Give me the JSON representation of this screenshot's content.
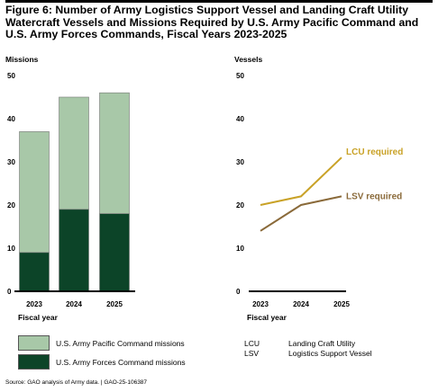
{
  "figure": {
    "title": "Figure 6: Number of Army Logistics Support Vessel and Landing Craft Utility Watercraft Vessels and Missions Required by U.S. Army Pacific Command and U.S. Army Forces Commands, Fiscal Years 2023-2025",
    "source": "Source: GAO analysis of Army data.  |  GAO-25-106387"
  },
  "legend": {
    "pacific_label": "U.S. Army Pacific Command missions",
    "forces_label": "U.S. Army Forces Command missions",
    "abbreviations": [
      {
        "abbr": "LCU",
        "meaning": "Landing Craft Utility"
      },
      {
        "abbr": "LSV",
        "meaning": "Logistics Support Vessel"
      }
    ]
  },
  "colors": {
    "pacific": "#a8c8a8",
    "forces": "#0c4428",
    "lcu": "#c9a227",
    "lsv": "#8a6a3a"
  },
  "chart_data": [
    {
      "type": "bar",
      "stacked": true,
      "ylabel": "Missions",
      "xlabel": "Fiscal year",
      "ylim": [
        0,
        50
      ],
      "yticks": [
        0,
        10,
        20,
        30,
        40,
        50
      ],
      "categories": [
        "2023",
        "2024",
        "2025"
      ],
      "series": [
        {
          "name": "U.S. Army Forces Command missions",
          "values": [
            9,
            19,
            18
          ]
        },
        {
          "name": "U.S. Army Pacific Command missions",
          "values": [
            28,
            26,
            28
          ]
        }
      ],
      "grid": false
    },
    {
      "type": "line",
      "ylabel": "Vessels",
      "xlabel": "Fiscal year",
      "ylim": [
        0,
        50
      ],
      "yticks": [
        0,
        10,
        20,
        30,
        40,
        50
      ],
      "x": [
        "2023",
        "2024",
        "2025"
      ],
      "series": [
        {
          "name": "LCU required",
          "values": [
            20,
            22,
            31
          ]
        },
        {
          "name": "LSV required",
          "values": [
            14,
            20,
            22
          ]
        }
      ],
      "grid": false
    }
  ]
}
